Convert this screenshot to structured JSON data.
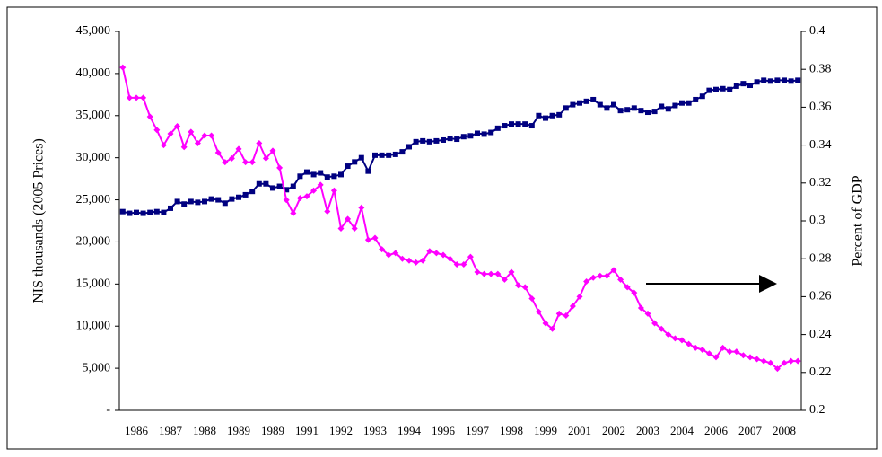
{
  "chart_data": {
    "type": "line",
    "y_label": "NIS thousands (2005 Prices)",
    "y2_label": "Percent of GDP",
    "categories": [
      null,
      null,
      "1986",
      null,
      null,
      null,
      null,
      "1987",
      null,
      null,
      null,
      null,
      "1988",
      null,
      null,
      null,
      null,
      "1989",
      null,
      null,
      null,
      null,
      "1989",
      null,
      null,
      null,
      null,
      "1991",
      null,
      null,
      null,
      null,
      "1992",
      null,
      null,
      null,
      null,
      "1993",
      null,
      null,
      null,
      null,
      "1994",
      null,
      null,
      null,
      null,
      "1996",
      null,
      null,
      null,
      null,
      "1997",
      null,
      null,
      null,
      null,
      "1998",
      null,
      null,
      null,
      null,
      "1999",
      null,
      null,
      null,
      null,
      "2001",
      null,
      null,
      null,
      null,
      "2002",
      null,
      null,
      null,
      null,
      "2003",
      null,
      null,
      null,
      null,
      "2004",
      null,
      null,
      null,
      null,
      "2006",
      null,
      null,
      null,
      null,
      "2007",
      null,
      null,
      null,
      null,
      "2008",
      null,
      null
    ],
    "series": [
      {
        "color": "#000080",
        "marker": "square",
        "values": [
          23600,
          23400,
          23500,
          23400,
          23500,
          23600,
          23500,
          24000,
          24800,
          24500,
          24800,
          24700,
          24800,
          25100,
          25000,
          24600,
          25100,
          25300,
          25600,
          26000,
          26900,
          26900,
          26400,
          26600,
          26200,
          26600,
          27800,
          28300,
          28000,
          28200,
          27700,
          27800,
          28000,
          29000,
          29500,
          30000,
          28400,
          30300,
          30300,
          30300,
          30400,
          30700,
          31300,
          31900,
          32000,
          31900,
          32000,
          32100,
          32300,
          32200,
          32500,
          32600,
          32900,
          32800,
          33000,
          33500,
          33800,
          34000,
          34000,
          34000,
          33800,
          35000,
          34700,
          35000,
          35100,
          35900,
          36300,
          36500,
          36700,
          36900,
          36300,
          35900,
          36300,
          35600,
          35700,
          35900,
          35600,
          35400,
          35500,
          36100,
          35800,
          36200,
          36500,
          36500,
          36900,
          37300,
          38000,
          38100,
          38200,
          38100,
          38500,
          38800,
          38600,
          39000,
          39200,
          39100,
          39200,
          39200,
          39100,
          39200
        ]
      },
      {
        "color": "#ff00ff",
        "marker": "diamond",
        "axis": "y2",
        "values": [
          0.381,
          0.365,
          0.365,
          0.365,
          0.355,
          0.348,
          0.34,
          0.346,
          0.35,
          0.339,
          0.347,
          0.341,
          0.345,
          0.345,
          0.336,
          0.331,
          0.333,
          0.338,
          0.331,
          0.331,
          0.341,
          0.333,
          0.337,
          0.328,
          0.311,
          0.304,
          0.312,
          0.313,
          0.316,
          0.319,
          0.305,
          0.316,
          0.296,
          0.301,
          0.296,
          0.307,
          0.29,
          0.291,
          0.285,
          0.282,
          0.283,
          0.28,
          0.279,
          0.278,
          0.279,
          0.284,
          0.283,
          0.282,
          0.28,
          0.277,
          0.277,
          0.281,
          0.273,
          0.272,
          0.272,
          0.272,
          0.269,
          0.273,
          0.266,
          0.265,
          0.259,
          0.252,
          0.246,
          0.243,
          0.251,
          0.25,
          0.255,
          0.26,
          0.268,
          0.27,
          0.271,
          0.271,
          0.274,
          0.269,
          0.265,
          0.262,
          0.254,
          0.251,
          0.246,
          0.243,
          0.24,
          0.238,
          0.237,
          0.235,
          0.233,
          0.232,
          0.23,
          0.228,
          0.233,
          0.231,
          0.231,
          0.229,
          0.228,
          0.227,
          0.226,
          0.225,
          0.222,
          0.225,
          0.226,
          0.226
        ]
      }
    ],
    "ylim": [
      0,
      45000
    ],
    "yticks": [
      {
        "value": 0,
        "label": "-"
      },
      {
        "value": 5000,
        "label": "5,000"
      },
      {
        "value": 10000,
        "label": "10,000"
      },
      {
        "value": 15000,
        "label": "15,000"
      },
      {
        "value": 20000,
        "label": "20,000"
      },
      {
        "value": 25000,
        "label": "25,000"
      },
      {
        "value": 30000,
        "label": "30,000"
      },
      {
        "value": 35000,
        "label": "35,000"
      },
      {
        "value": 40000,
        "label": "40,000"
      },
      {
        "value": 45000,
        "label": "45,000"
      }
    ],
    "y2lim": [
      0.2,
      0.4
    ],
    "y2ticks": [
      0.2,
      0.22,
      0.24,
      0.26,
      0.28,
      0.3,
      0.32,
      0.34,
      0.36,
      0.38,
      0.4
    ],
    "grid": false
  }
}
